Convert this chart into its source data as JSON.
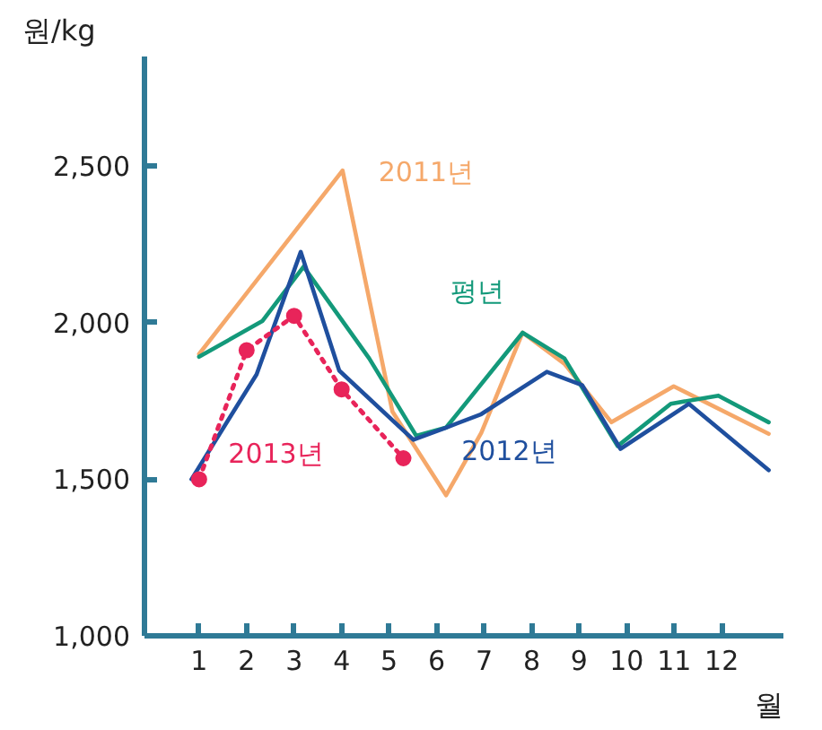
{
  "chart_data": {
    "type": "line",
    "ylabel": "원/kg",
    "xlabel": "월",
    "xlim": [
      -0.15,
      13.3
    ],
    "ylim": [
      1000,
      2850
    ],
    "xticks": [
      1,
      2,
      3,
      4,
      5,
      6,
      7,
      8,
      9,
      10,
      11,
      12
    ],
    "yticks": [
      {
        "value": 1000,
        "label": "1,000"
      },
      {
        "value": 1500,
        "label": "1,500"
      },
      {
        "value": 2000,
        "label": "2,000"
      },
      {
        "value": 2500,
        "label": "2,500"
      }
    ],
    "grid": false,
    "series": [
      {
        "name": "2011년",
        "color": "#f5a86a",
        "line_style": "solid",
        "marker": "none",
        "x": [
          1.0,
          4.02,
          5.07,
          6.2,
          6.94,
          7.81,
          8.69,
          9.68,
          10.99,
          12.99
        ],
        "values": [
          1900,
          2486,
          1716,
          1449,
          1648,
          1968,
          1869,
          1682,
          1797,
          1645
        ]
      },
      {
        "name": "평년",
        "color": "#13997a",
        "line_style": "solid",
        "marker": "none",
        "x": [
          1.0,
          2.33,
          3.2,
          4.58,
          5.57,
          6.2,
          7.81,
          8.69,
          9.81,
          10.93,
          11.93,
          12.99
        ],
        "values": [
          1891,
          2005,
          2179,
          1886,
          1639,
          1665,
          1968,
          1886,
          1606,
          1741,
          1767,
          1682
        ]
      },
      {
        "name": "2012년",
        "color": "#1f4f9e",
        "line_style": "solid",
        "marker": "none",
        "x": [
          0.84,
          2.21,
          3.14,
          3.95,
          5.51,
          6.2,
          6.94,
          8.32,
          9.06,
          9.87,
          11.31,
          12.99
        ],
        "values": [
          1500,
          1835,
          2226,
          1847,
          1626,
          1665,
          1708,
          1843,
          1801,
          1597,
          1741,
          1529
        ]
      },
      {
        "name": "2013년",
        "color": "#e8245a",
        "line_style": "dotted",
        "marker": "circle",
        "x": [
          1,
          2,
          3,
          4,
          5.3
        ],
        "values": [
          1500,
          1912,
          2022,
          1787,
          1567
        ]
      }
    ]
  }
}
